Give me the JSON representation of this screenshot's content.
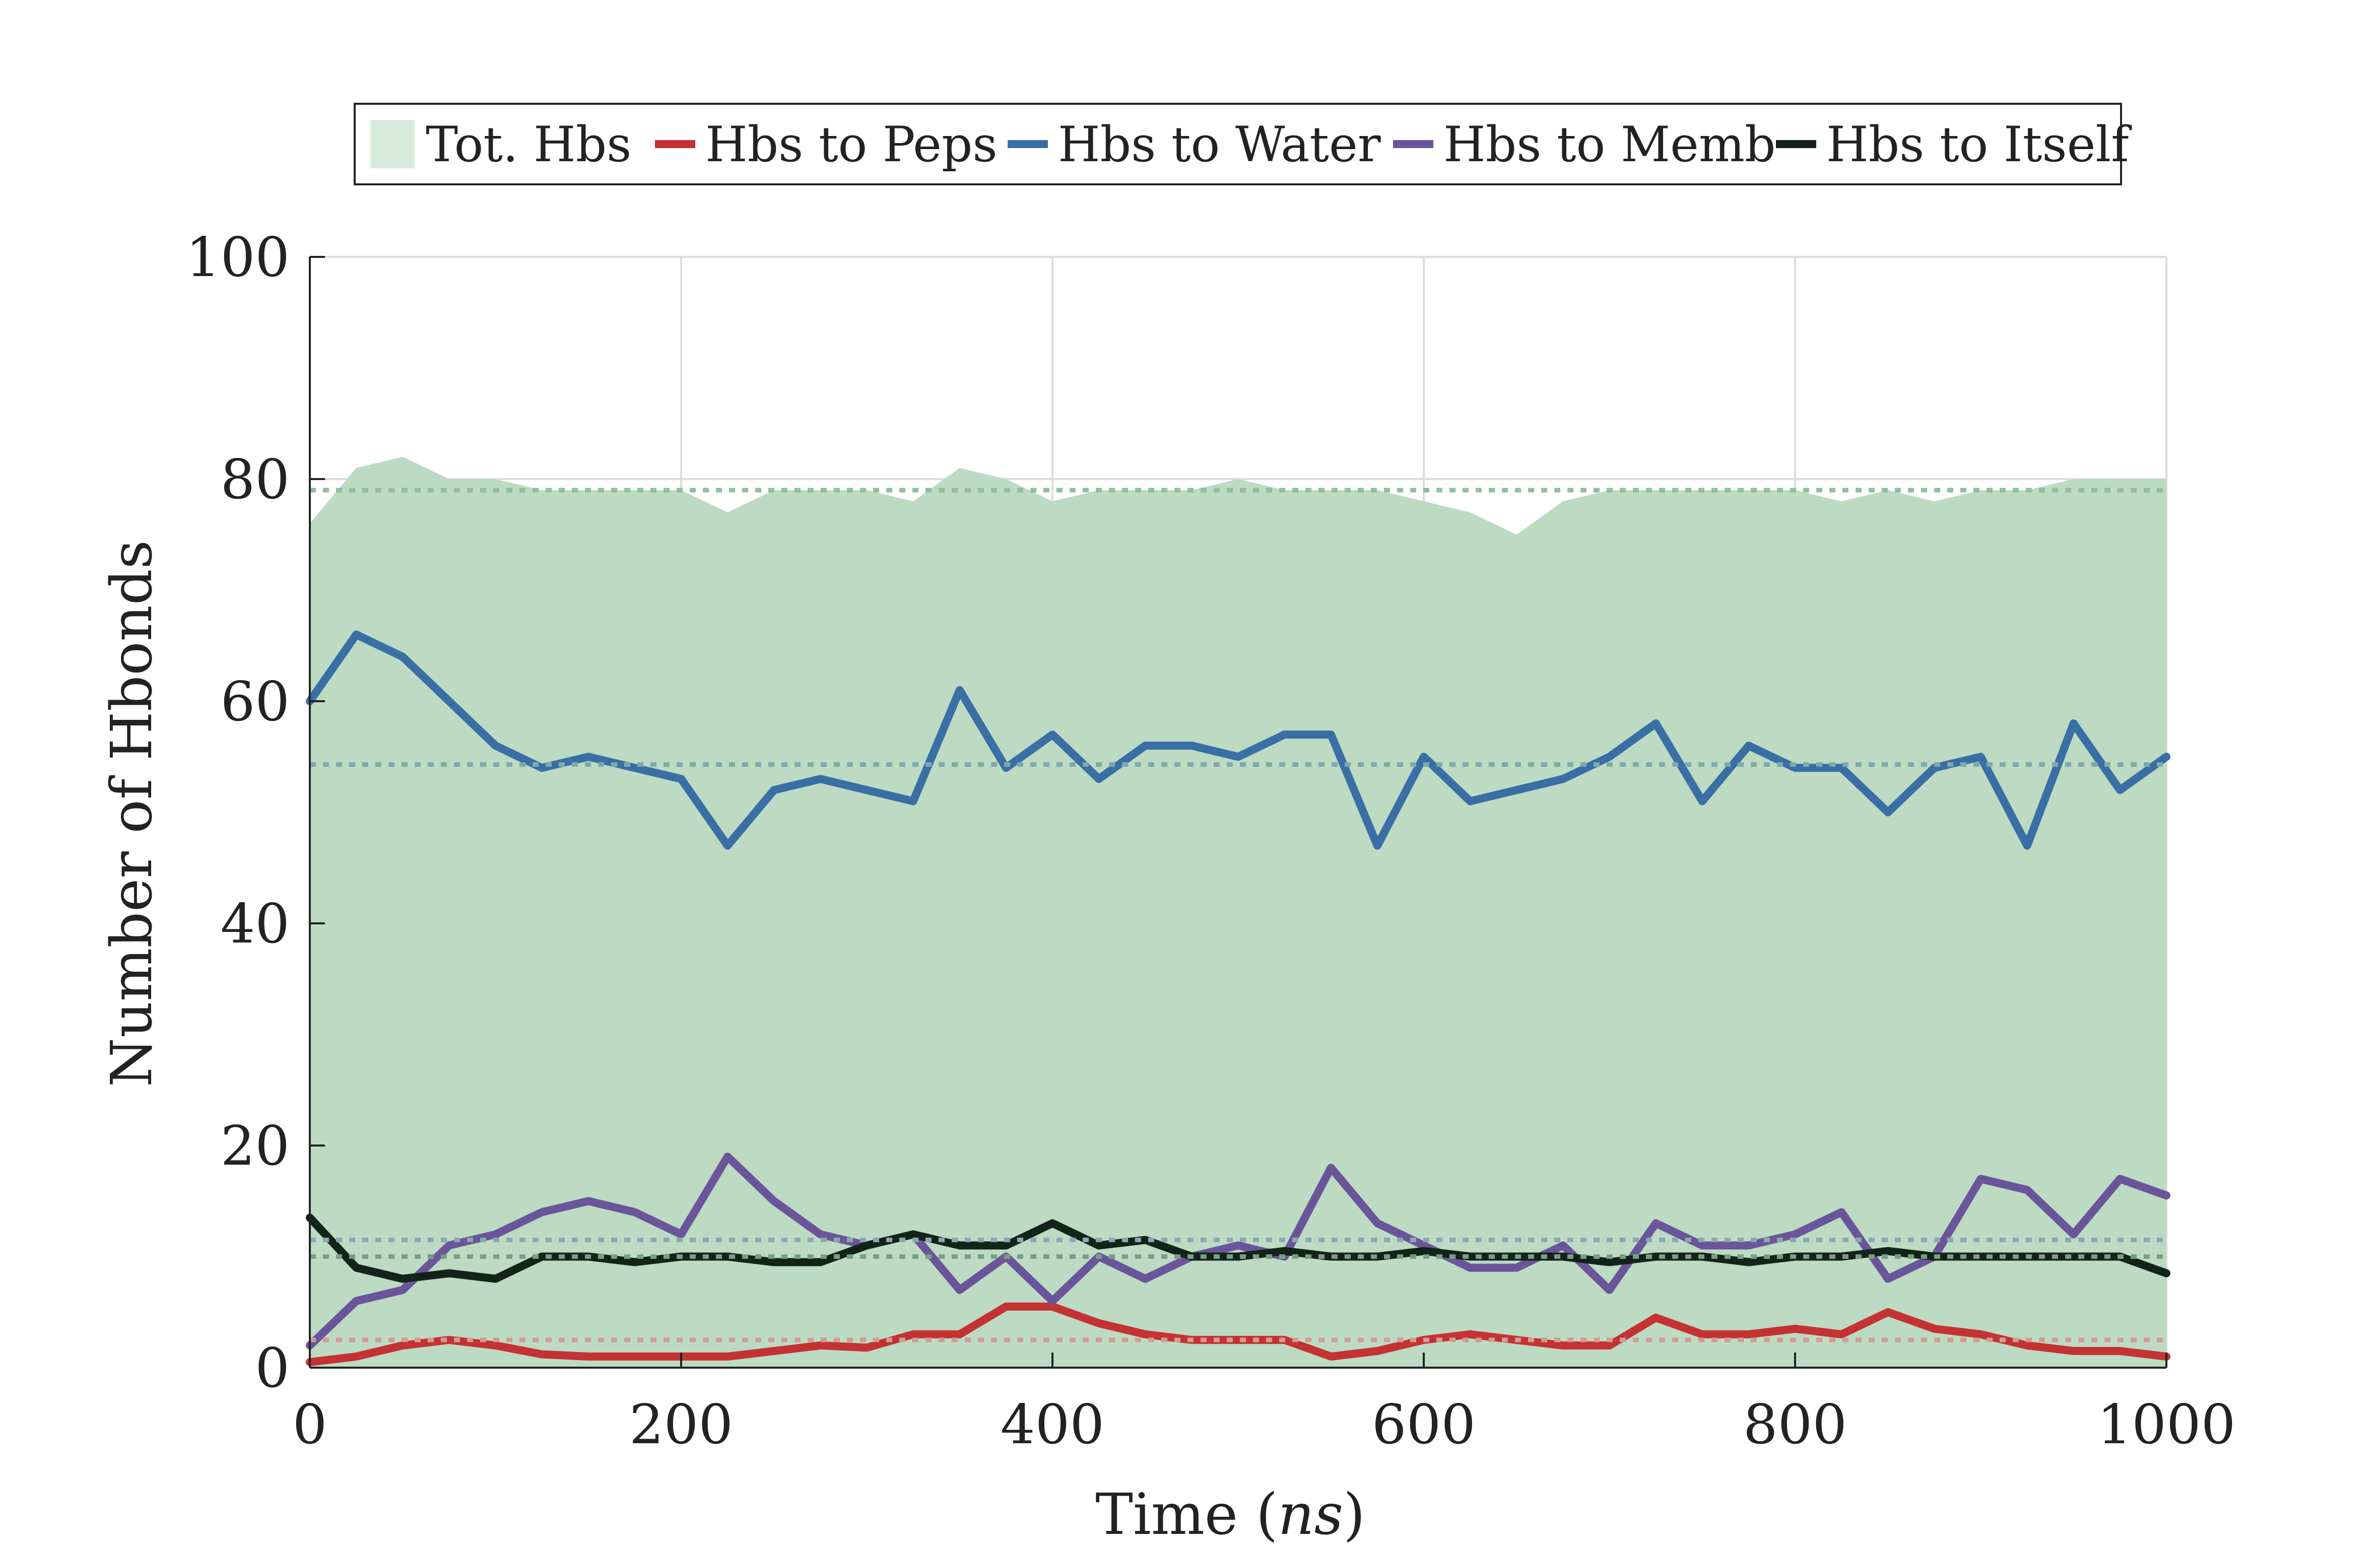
{
  "chart_data": {
    "type": "line",
    "title": "",
    "xlabel_main": "Time (",
    "xlabel_unit": "ns",
    "xlabel_close": ")",
    "ylabel": "Number of Hbonds",
    "xlim": [
      0,
      1000
    ],
    "ylim": [
      0,
      100
    ],
    "x_ticks": [
      0,
      200,
      400,
      600,
      800,
      1000
    ],
    "y_ticks": [
      0,
      20,
      40,
      60,
      80,
      100
    ],
    "x_tick_labels": [
      "0",
      "200",
      "400",
      "600",
      "800",
      "1000"
    ],
    "y_tick_labels": [
      "0",
      "20",
      "40",
      "60",
      "80",
      "100"
    ],
    "grid": true,
    "legend_position": "top-center",
    "x": [
      0,
      25,
      50,
      75,
      100,
      125,
      150,
      175,
      200,
      225,
      250,
      275,
      300,
      325,
      350,
      375,
      400,
      425,
      450,
      475,
      500,
      525,
      550,
      575,
      600,
      625,
      650,
      675,
      700,
      725,
      750,
      775,
      800,
      825,
      850,
      875,
      900,
      925,
      950,
      975,
      1000
    ],
    "series": [
      {
        "name": "Tot. Hbs",
        "style": "area",
        "color": "#bcdbc2",
        "legend_color": "#d8eadb",
        "mean": 79,
        "mean_color": "#8fbf9c",
        "values": [
          76,
          81,
          82,
          80,
          80,
          79,
          79,
          79,
          79,
          77,
          79,
          79,
          79,
          78,
          81,
          80,
          78,
          79,
          79,
          79,
          80,
          79,
          79,
          79,
          78,
          77,
          75,
          78,
          79,
          79,
          79,
          79,
          79,
          78,
          79,
          78,
          79,
          79,
          80,
          80,
          80
        ]
      },
      {
        "name": "Hbs to Peps",
        "style": "line",
        "color": "#c43234",
        "mean": 2.5,
        "mean_color": "#d39b93",
        "values": [
          0.5,
          1,
          2,
          2.5,
          2,
          1.2,
          1,
          1,
          1,
          1,
          1.5,
          2,
          1.8,
          3,
          3,
          5.5,
          5.5,
          4,
          3,
          2.5,
          2.5,
          2.5,
          1,
          1.5,
          2.5,
          3,
          2.5,
          2,
          2,
          4.5,
          3,
          3,
          3.5,
          3,
          5,
          3.5,
          3,
          2,
          1.5,
          1.5,
          1
        ]
      },
      {
        "name": "Hbs to Water",
        "style": "line",
        "color": "#3a6fa5",
        "mean": 54.3,
        "mean_color": "#7ea9ae",
        "values": [
          60,
          66,
          64,
          60,
          56,
          54,
          55,
          54,
          53,
          47,
          52,
          53,
          52,
          51,
          61,
          54,
          57,
          53,
          56,
          56,
          55,
          57,
          57,
          47,
          55,
          51,
          52,
          53,
          55,
          58,
          51,
          56,
          54,
          54,
          50,
          54,
          55,
          47,
          58,
          52,
          55
        ]
      },
      {
        "name": "Hbs to Memb",
        "style": "line",
        "color": "#6b559a",
        "mean": 11.5,
        "mean_color": "#8ca7b0",
        "values": [
          2,
          6,
          7,
          11,
          12,
          14,
          15,
          14,
          12,
          19,
          15,
          12,
          11,
          12,
          7,
          10,
          6,
          10,
          8,
          10,
          11,
          10,
          18,
          13,
          11,
          9,
          9,
          11,
          7,
          13,
          11,
          11,
          12,
          14,
          8,
          10,
          17,
          16,
          12,
          17,
          15.5
        ]
      },
      {
        "name": "Hbs to Itself",
        "style": "line",
        "color": "#13231a",
        "mean": 10,
        "mean_color": "#7a9e85",
        "values": [
          13.5,
          9,
          8,
          8.5,
          8,
          10,
          10,
          9.5,
          10,
          10,
          9.5,
          9.5,
          11,
          12,
          11,
          11,
          13,
          11,
          11.5,
          10,
          10,
          10.5,
          10,
          10,
          10.5,
          10,
          10,
          10,
          9.5,
          10,
          10,
          9.5,
          10,
          10,
          10.5,
          10,
          10,
          10,
          10,
          10,
          8.5
        ]
      }
    ]
  }
}
